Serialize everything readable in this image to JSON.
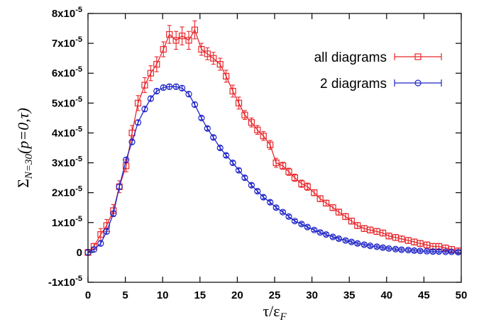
{
  "chart_data": {
    "type": "line",
    "title": "",
    "xlabel_main": "τ/ε",
    "xlabel_sub": "F",
    "ylabel_main": "Σ",
    "ylabel_sub": "N=30",
    "ylabel_args": "(p=0,τ)",
    "xlim": [
      0,
      50
    ],
    "ylim": [
      -1e-05,
      8e-05
    ],
    "x_ticks": [
      0,
      5,
      10,
      15,
      20,
      25,
      30,
      35,
      40,
      45,
      50
    ],
    "x_tick_labels": [
      "0",
      "5",
      "10",
      "15",
      "20",
      "25",
      "30",
      "35",
      "40",
      "45",
      "50"
    ],
    "y_ticks": [
      -1e-05,
      0,
      1e-05,
      2e-05,
      3e-05,
      4e-05,
      5e-05,
      6e-05,
      7e-05,
      8e-05
    ],
    "y_tick_labels": [
      {
        "mant": "-1x10",
        "exp": "-5"
      },
      {
        "mant": "0",
        "exp": ""
      },
      {
        "mant": "1x10",
        "exp": "-5"
      },
      {
        "mant": "2x10",
        "exp": "-5"
      },
      {
        "mant": "3x10",
        "exp": "-5"
      },
      {
        "mant": "4x10",
        "exp": "-5"
      },
      {
        "mant": "5x10",
        "exp": "-5"
      },
      {
        "mant": "6x10",
        "exp": "-5"
      },
      {
        "mant": "7x10",
        "exp": "-5"
      },
      {
        "mant": "8x10",
        "exp": "-5"
      }
    ],
    "grid": false,
    "legend_position": "top-right",
    "series": [
      {
        "name": "all diagrams",
        "color": "#e8262a",
        "marker": "square",
        "x": [
          0,
          0.8,
          1.7,
          2.5,
          3.4,
          4.2,
          5.1,
          5.9,
          6.7,
          7.6,
          8.4,
          9.2,
          10.1,
          10.9,
          11.8,
          12.6,
          13.5,
          14.3,
          15.2,
          16.0,
          16.8,
          17.7,
          18.5,
          19.4,
          20.2,
          21.0,
          21.9,
          22.7,
          23.5,
          24.4,
          25.2,
          26.1,
          26.9,
          27.7,
          28.6,
          29.4,
          30.3,
          31.1,
          31.9,
          32.8,
          33.6,
          34.5,
          35.3,
          36.1,
          37.0,
          37.8,
          38.7,
          39.5,
          40.3,
          41.2,
          42.0,
          42.9,
          43.7,
          44.5,
          45.4,
          46.2,
          47.0,
          47.9,
          48.7,
          49.6
        ],
        "y": [
          0.0,
          2e-06,
          6e-06,
          9e-06,
          1.4e-05,
          2.2e-05,
          2.9e-05,
          4e-05,
          5e-05,
          5.6e-05,
          6e-05,
          6.3e-05,
          6.8e-05,
          7.3e-05,
          7.1e-05,
          7.25e-05,
          7.1e-05,
          7.45e-05,
          6.8e-05,
          6.65e-05,
          6.5e-05,
          6.3e-05,
          5.9e-05,
          5.4e-05,
          5e-05,
          4.6e-05,
          4.35e-05,
          4.1e-05,
          3.9e-05,
          3.6e-05,
          3e-05,
          2.9e-05,
          2.7e-05,
          2.5e-05,
          2.3e-05,
          2.2e-05,
          2e-05,
          1.8e-05,
          1.65e-05,
          1.5e-05,
          1.35e-05,
          1.2e-05,
          1.05e-05,
          9e-06,
          8e-06,
          7.5e-06,
          7e-06,
          6.5e-06,
          5.5e-06,
          5e-06,
          4.5e-06,
          4e-06,
          3.5e-06,
          3e-06,
          2.5e-06,
          2e-06,
          2e-06,
          1.5e-06,
          1e-06,
          5e-07
        ],
        "err": [
          1e-06,
          1e-06,
          2e-06,
          2e-06,
          2e-06,
          2e-06,
          2e-06,
          2.5e-06,
          2.5e-06,
          2.5e-06,
          2.5e-06,
          2.5e-06,
          2.5e-06,
          3e-06,
          3e-06,
          3e-06,
          3e-06,
          3e-06,
          2e-06,
          2e-06,
          2e-06,
          2e-06,
          2e-06,
          2e-06,
          2e-06,
          1.5e-06,
          1.5e-06,
          1.5e-06,
          1.5e-06,
          1.5e-06,
          1.5e-06,
          1.2e-06,
          1.2e-06,
          1.2e-06,
          1.2e-06,
          1.2e-06,
          1e-06,
          1e-06,
          1e-06,
          1e-06,
          1e-06,
          1e-06,
          1e-06,
          1e-06,
          1e-06,
          1e-06,
          1e-06,
          1e-06,
          1e-06,
          1e-06,
          1e-06,
          1e-06,
          1e-06,
          1e-06,
          1e-06,
          1e-06,
          1e-06,
          1e-06,
          1e-06,
          1e-06
        ]
      },
      {
        "name": "2 diagrams",
        "color": "#1f24c8",
        "marker": "circle",
        "x": [
          0,
          0.8,
          1.7,
          2.5,
          3.4,
          4.2,
          5.1,
          5.9,
          6.7,
          7.6,
          8.4,
          9.2,
          10.1,
          10.9,
          11.8,
          12.6,
          13.5,
          14.3,
          15.2,
          16.0,
          16.8,
          17.7,
          18.5,
          19.4,
          20.2,
          21.0,
          21.9,
          22.7,
          23.5,
          24.4,
          25.2,
          26.1,
          26.9,
          27.7,
          28.6,
          29.4,
          30.3,
          31.1,
          31.9,
          32.8,
          33.6,
          34.5,
          35.3,
          36.1,
          37.0,
          37.8,
          38.7,
          39.5,
          40.3,
          41.2,
          42.0,
          42.9,
          43.7,
          44.5,
          45.4,
          46.2,
          47.0,
          47.9,
          48.7,
          49.6
        ],
        "y": [
          0.0,
          1e-06,
          3e-06,
          7e-06,
          1.3e-05,
          2.2e-05,
          3.1e-05,
          3.7e-05,
          4.35e-05,
          4.8e-05,
          5.15e-05,
          5.4e-05,
          5.52e-05,
          5.55e-05,
          5.55e-05,
          5.5e-05,
          5.3e-05,
          4.95e-05,
          4.5e-05,
          4.15e-05,
          3.85e-05,
          3.5e-05,
          3.25e-05,
          3e-05,
          2.75e-05,
          2.5e-05,
          2.25e-05,
          2.05e-05,
          1.85e-05,
          1.68e-05,
          1.5e-05,
          1.35e-05,
          1.2e-05,
          1.05e-05,
          9.5e-06,
          8.5e-06,
          7.5e-06,
          6.7e-06,
          6e-06,
          5.2e-06,
          4.6e-06,
          4e-06,
          3.5e-06,
          3e-06,
          2.6e-06,
          2.2e-06,
          1.9e-06,
          1.6e-06,
          1.3e-06,
          1.1e-06,
          9e-07,
          8e-07,
          6e-07,
          5e-07,
          4e-07,
          3e-07,
          3e-07,
          2e-07,
          2e-07,
          1e-07
        ],
        "err": [
          8e-07,
          8e-07,
          8e-07,
          8e-07,
          8e-07,
          8e-07,
          8e-07,
          8e-07,
          8e-07,
          8e-07,
          8e-07,
          8e-07,
          8e-07,
          8e-07,
          8e-07,
          8e-07,
          8e-07,
          8e-07,
          6e-07,
          6e-07,
          6e-07,
          6e-07,
          6e-07,
          6e-07,
          6e-07,
          6e-07,
          6e-07,
          6e-07,
          6e-07,
          6e-07,
          5e-07,
          5e-07,
          5e-07,
          5e-07,
          5e-07,
          5e-07,
          5e-07,
          5e-07,
          5e-07,
          5e-07,
          5e-07,
          5e-07,
          5e-07,
          5e-07,
          5e-07,
          5e-07,
          5e-07,
          5e-07,
          5e-07,
          5e-07,
          5e-07,
          5e-07,
          5e-07,
          5e-07,
          5e-07,
          5e-07,
          5e-07,
          5e-07,
          5e-07,
          5e-07
        ]
      }
    ]
  }
}
